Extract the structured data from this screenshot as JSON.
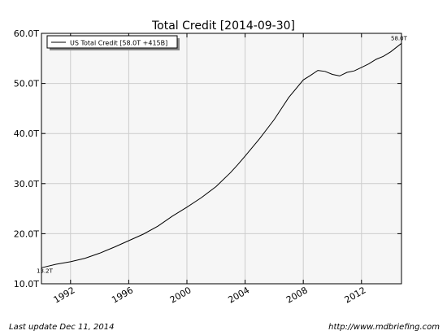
{
  "chart_data": {
    "type": "line",
    "title": "Total Credit  [2014-09-30]",
    "xlabel": "",
    "ylabel": "",
    "xlim": [
      1990.0,
      2014.75
    ],
    "ylim": [
      10,
      60
    ],
    "x_ticks": [
      1992,
      1996,
      2000,
      2004,
      2008,
      2012
    ],
    "y_ticks": [
      10,
      20,
      30,
      40,
      50,
      60
    ],
    "y_tick_labels": [
      "10.0T",
      "20.0T",
      "30.0T",
      "40.0T",
      "50.0T",
      "60.0T"
    ],
    "grid": true,
    "legend_position": "top-left",
    "series": [
      {
        "name": "US Total Credit [58.0T +415B]",
        "x": [
          1990.0,
          1991.0,
          1992.0,
          1993.0,
          1994.0,
          1995.0,
          1996.0,
          1997.0,
          1998.0,
          1999.0,
          2000.0,
          2001.0,
          2002.0,
          2003.0,
          2003.5,
          2004.0,
          2005.0,
          2006.0,
          2007.0,
          2008.0,
          2008.5,
          2009.0,
          2009.5,
          2010.0,
          2010.5,
          2011.0,
          2011.5,
          2012.0,
          2012.5,
          2013.0,
          2013.5,
          2014.0,
          2014.75
        ],
        "values": [
          13.2,
          13.9,
          14.4,
          15.1,
          16.1,
          17.3,
          18.6,
          19.9,
          21.5,
          23.5,
          25.3,
          27.2,
          29.4,
          32.2,
          33.8,
          35.5,
          39.0,
          42.8,
          47.2,
          50.7,
          51.6,
          52.6,
          52.4,
          51.8,
          51.5,
          52.2,
          52.5,
          53.2,
          53.9,
          54.8,
          55.4,
          56.3,
          58.0
        ]
      }
    ],
    "annotations": [
      {
        "text": "13.2T",
        "x": 1990.0,
        "y": 13.2,
        "anchor": "below-left"
      },
      {
        "text": "58.0T",
        "x": 2014.75,
        "y": 58.0,
        "anchor": "above-right"
      }
    ],
    "colors": {
      "line": "#000000",
      "plot_background": "#f6f6f6",
      "grid": "#cccccc"
    }
  },
  "footer": {
    "last_update": "Last update Dec 11, 2014",
    "source_url": "http://www.mdbriefing.com"
  }
}
